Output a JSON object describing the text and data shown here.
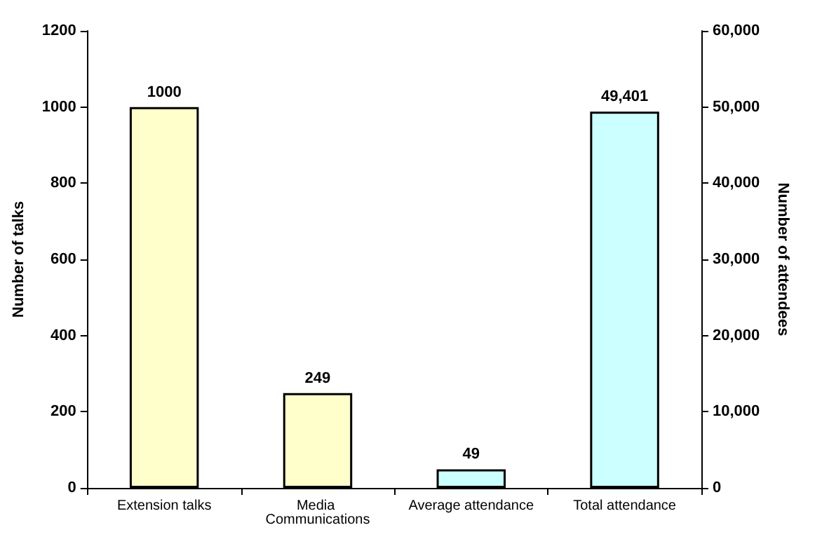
{
  "chart_data": {
    "type": "bar",
    "categories": [
      "Extension talks",
      "Media Communications",
      "Average attendance",
      "Total attendance"
    ],
    "ylabel": "Number of talks",
    "y2label": "Number of attendees",
    "ylim": [
      0,
      1200
    ],
    "yticks": [
      0,
      200,
      400,
      600,
      800,
      1000,
      1200
    ],
    "y2lim": [
      0,
      60000
    ],
    "y2ticks": [
      0,
      {
        "value": 10000,
        "label": "10,000"
      },
      {
        "value": 20000,
        "label": "20,000"
      },
      {
        "value": 30000,
        "label": "30,000"
      },
      {
        "value": 40000,
        "label": "40,000"
      },
      {
        "value": 50000,
        "label": "50,000"
      },
      {
        "value": 60000,
        "label": "60,000"
      }
    ],
    "grid": false,
    "series": [
      {
        "color": "#ffffcc",
        "values": [
          1000,
          249,
          null,
          null
        ],
        "value_labels": [
          "1000",
          "249",
          null,
          null
        ]
      },
      {
        "color": "#ccffff",
        "values": [
          null,
          null,
          49,
          null
        ],
        "value_labels": [
          null,
          null,
          "49",
          null
        ]
      },
      {
        "color": "#ccffff",
        "axis": "y2",
        "values": [
          null,
          null,
          null,
          49401
        ],
        "value_labels": [
          null,
          null,
          null,
          "49,401"
        ]
      }
    ]
  }
}
